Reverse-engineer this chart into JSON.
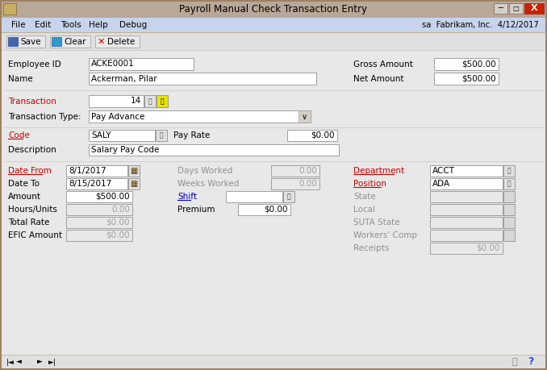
{
  "title": "Payroll Manual Check Transaction Entry",
  "menu_items": [
    "File",
    "Edit",
    "Tools",
    "Help",
    "Debug"
  ],
  "menu_right": "sa  Fabrikam, Inc.  4/12/2017",
  "title_bar_bg": "#b5a090",
  "title_bar_text": "#000000",
  "menu_bar_bg": "#c8d4e8",
  "toolbar_bg": "#e8e8e8",
  "form_bg": "#e8e8e8",
  "window_border": "#a08060",
  "input_bg": "#ffffff",
  "input_border": "#a0a0a0",
  "disabled_input_bg": "#e8e8e8",
  "disabled_input_text": "#a0a0a0",
  "normal_text": "#000000",
  "red_text": "#cc0000",
  "blue_text": "#0000cc",
  "gray_text": "#909090",
  "close_btn_bg": "#cc2200",
  "employee_id": "ACKE0001",
  "name": "Ackerman, Pilar",
  "gross_amount": "$500.00",
  "net_amount": "$500.00",
  "transaction": "14",
  "transaction_type": "Pay Advance",
  "code": "SALY",
  "pay_rate": "$0.00",
  "description": "Salary Pay Code",
  "date_from": "8/1/2017",
  "date_to": "8/15/2017",
  "amount": "$500.00",
  "hours_units": "0.00",
  "total_rate": "$0.00",
  "efic_amount": "$0.00",
  "days_worked": "0.00",
  "weeks_worked": "0.00",
  "premium": "$0.00",
  "department": "ACCT",
  "position": "ADA",
  "receipts": "$0.00"
}
